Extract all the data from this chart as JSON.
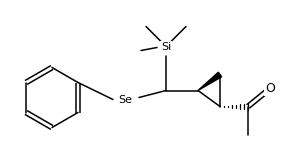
{
  "figsize": [
    2.86,
    1.65
  ],
  "dpi": 100,
  "background": "#ffffff",
  "line_color": "#000000",
  "line_width": 1.1,
  "font_size_label": 8,
  "si_label": "Si",
  "se_label": "Se",
  "o_label": "O"
}
